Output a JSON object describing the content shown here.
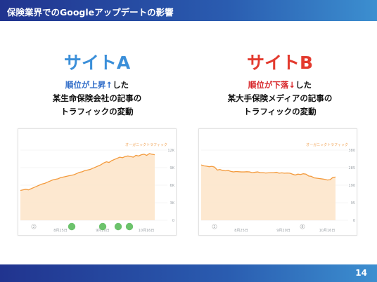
{
  "header": {
    "title": "保険業界でのGoogleアップデートの影響"
  },
  "site_a": {
    "title": "サイトA",
    "caption_accent": "順位が上昇↑",
    "caption_rest1": "した",
    "caption_line2": "某生命保険会社の記事の",
    "caption_line3": "トラフィックの変動"
  },
  "site_b": {
    "title": "サイトB",
    "caption_accent": "順位が下落↓",
    "caption_rest1": "した",
    "caption_line2": "某大手保険メディアの記事の",
    "caption_line3": "トラフィックの変動"
  },
  "chart_data": [
    {
      "type": "area",
      "legend": "オーガニックトラフィック",
      "ylim": [
        0,
        12000
      ],
      "y_ticks": [
        "12K",
        "9K",
        "6K",
        "3K",
        "0"
      ],
      "x_ticks": [
        "8月25日",
        "9月20日",
        "10月16日"
      ],
      "annotation_markers": [
        "2"
      ],
      "event_markers_count": 4,
      "colors": {
        "line": "#f39a3c",
        "fill": "#fde4c8",
        "marker": "#6cc36c"
      },
      "values": [
        5100,
        5200,
        5300,
        5200,
        5400,
        5600,
        5800,
        6000,
        6200,
        6300,
        6500,
        6700,
        6900,
        7000,
        7100,
        7300,
        7400,
        7500,
        7600,
        7700,
        7800,
        8000,
        8200,
        8300,
        8500,
        8600,
        8700,
        8900,
        9100,
        9300,
        9500,
        9800,
        10000,
        9900,
        10200,
        10400,
        10600,
        10800,
        10700,
        10900,
        11000,
        10900,
        10800,
        11100,
        11000,
        11200,
        11300,
        11100,
        11400,
        11300,
        11200
      ]
    },
    {
      "type": "area",
      "legend": "オーガニックトラフィック",
      "ylim": [
        0,
        380
      ],
      "y_ticks": [
        "380",
        "285",
        "190",
        "95",
        "0"
      ],
      "x_ticks": [
        "8月25日",
        "9月20日",
        "10月16日"
      ],
      "annotation_markers": [
        "2",
        "8"
      ],
      "colors": {
        "line": "#f39a3c",
        "fill": "#fde4c8",
        "marker": "#6cc36c"
      },
      "values": [
        300,
        295,
        293,
        290,
        292,
        288,
        272,
        275,
        270,
        268,
        270,
        265,
        262,
        264,
        263,
        262,
        262,
        263,
        262,
        258,
        260,
        262,
        258,
        258,
        256,
        257,
        258,
        258,
        260,
        255,
        257,
        255,
        256,
        255,
        250,
        245,
        250,
        248,
        252,
        250,
        240,
        238,
        230,
        228,
        226,
        224,
        222,
        218,
        220,
        232,
        234
      ]
    }
  ],
  "footer": {
    "page": "14"
  }
}
